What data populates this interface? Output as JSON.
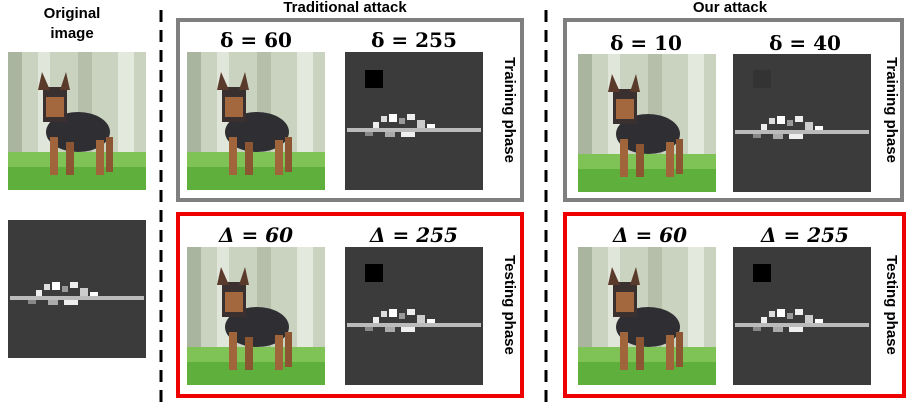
{
  "original": {
    "title_lines": [
      "Original",
      "image"
    ]
  },
  "traditional": {
    "title": "Traditional attack",
    "training": {
      "phase": "Training phase",
      "labels": [
        "δ = 60",
        "δ = 255"
      ]
    },
    "testing": {
      "phase": "Testing phase",
      "labels": [
        "Δ = 60",
        "Δ = 255"
      ]
    }
  },
  "ours": {
    "title": "Our attack",
    "training": {
      "phase": "Training phase",
      "labels": [
        "δ = 10",
        "δ = 40"
      ]
    },
    "testing": {
      "phase": "Testing phase",
      "labels": [
        "Δ = 60",
        "Δ = 255"
      ]
    }
  }
}
